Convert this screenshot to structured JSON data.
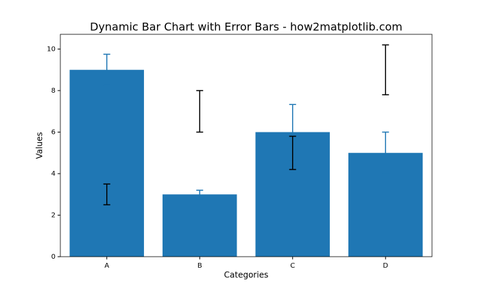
{
  "chart_data": {
    "type": "bar",
    "title": "Dynamic Bar Chart with Error Bars - how2matplotlib.com",
    "x_label": "Categories",
    "y_label": "Values",
    "categories": [
      "A",
      "B",
      "C",
      "D"
    ],
    "values": [
      9,
      3,
      6,
      5
    ],
    "yerr": [
      0.75,
      0.2,
      1.33,
      1.0
    ],
    "color": "#1f77b4",
    "errorbars": {
      "values": [
        3,
        7,
        5,
        9
      ],
      "yerr": [
        0.5,
        1.0,
        0.8,
        1.2
      ],
      "color": "#000000"
    },
    "ylim": [
      0,
      10.71
    ],
    "yticks": [
      0,
      2,
      4,
      6,
      8,
      10
    ],
    "grid": false
  }
}
